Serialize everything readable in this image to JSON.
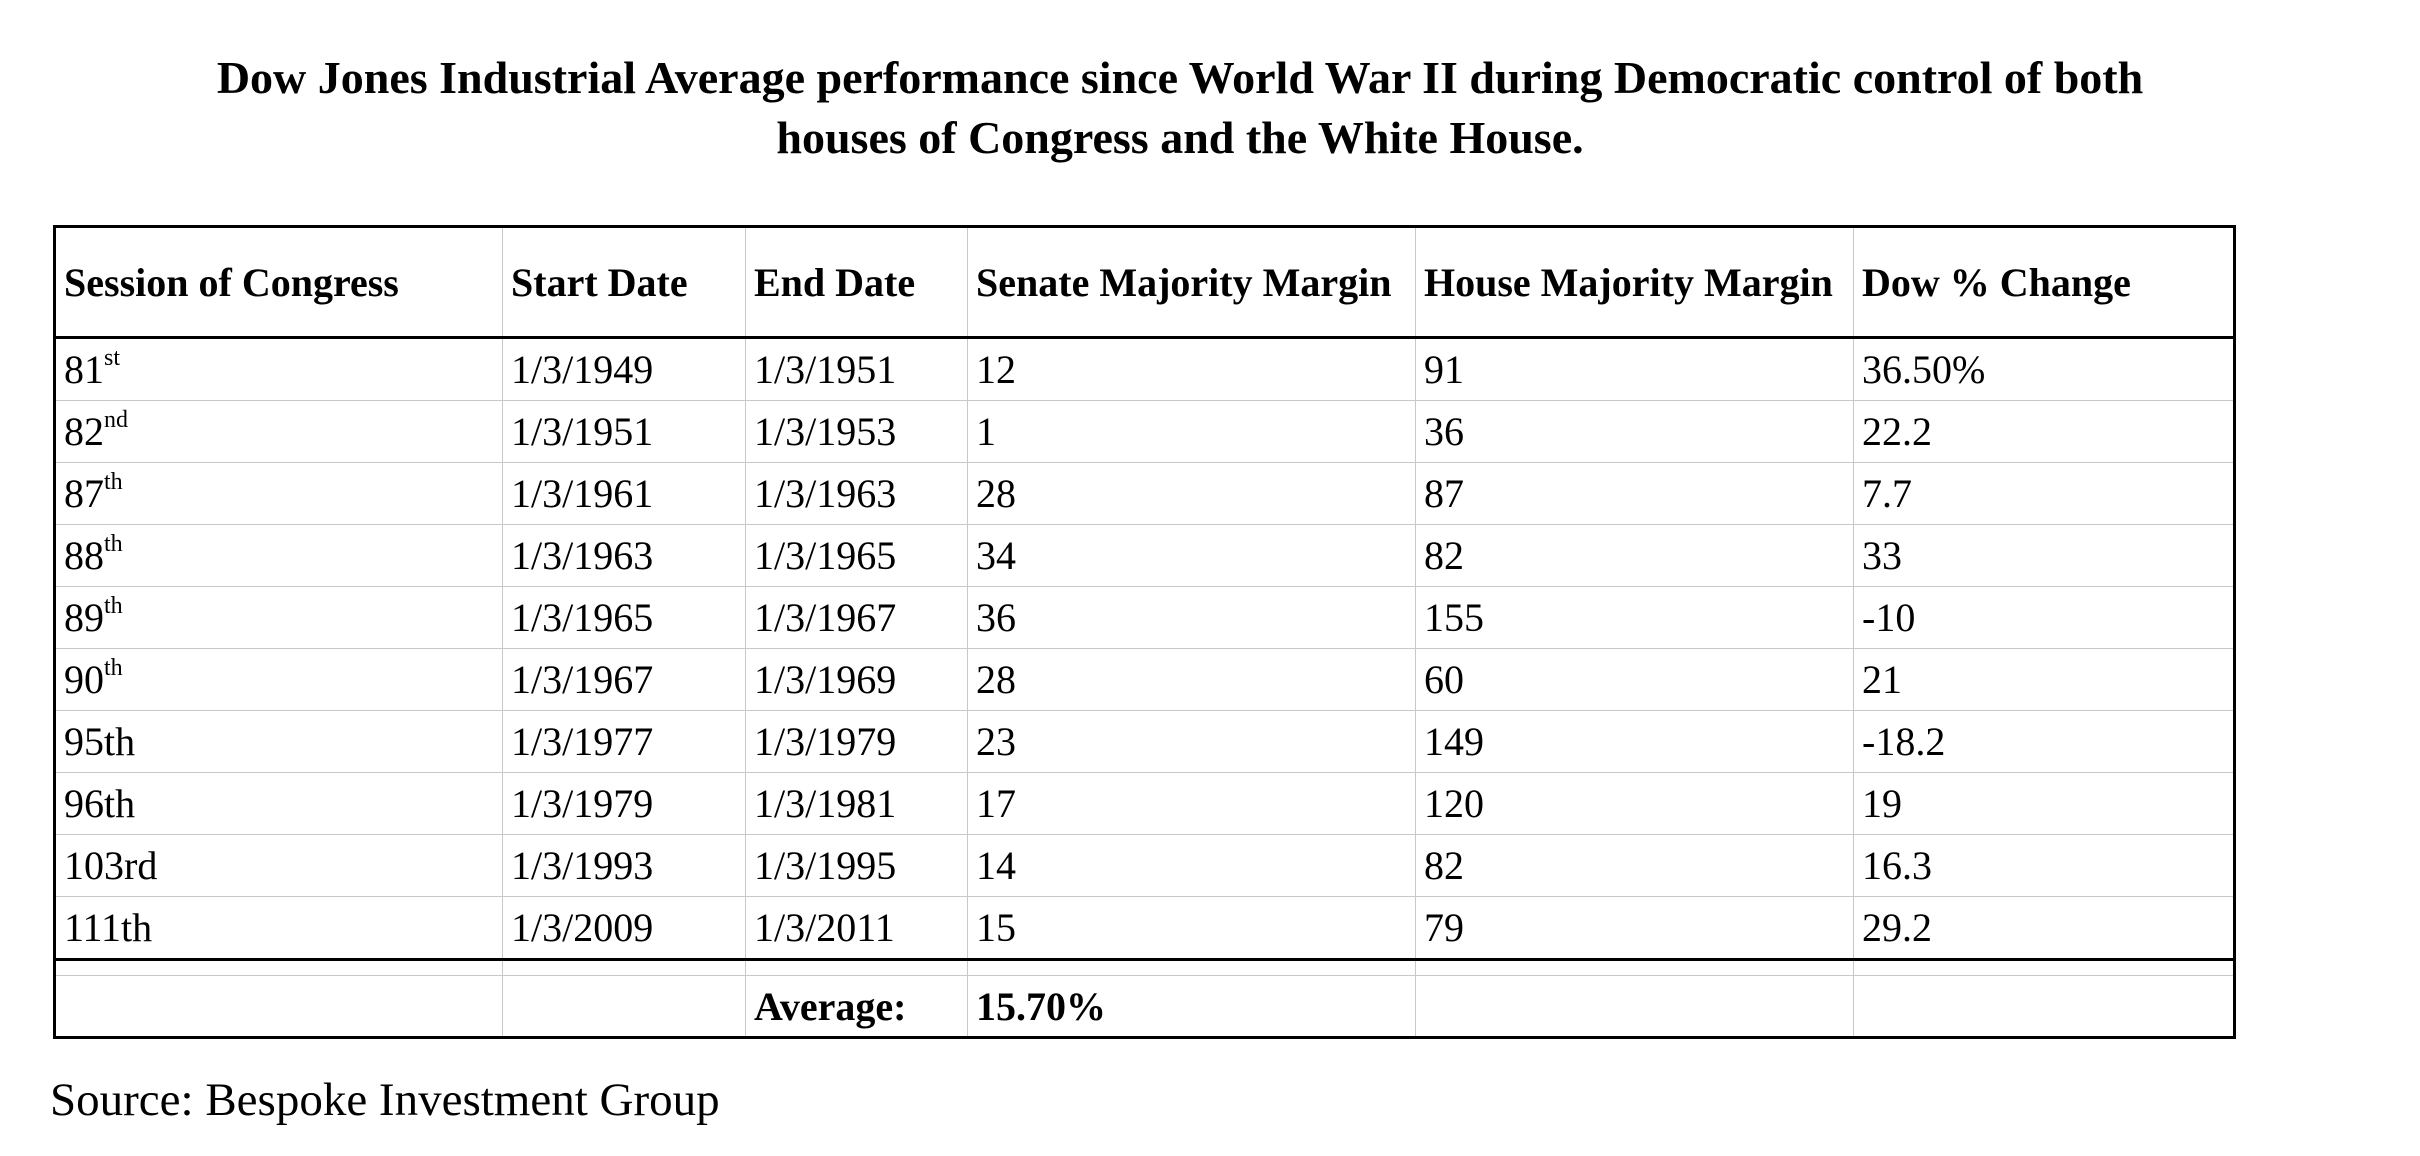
{
  "title": {
    "line1": "Dow Jones Industrial Average performance since World War II during Democratic control of both",
    "line2": "houses of Congress and the White House."
  },
  "table": {
    "headers": [
      "Session of Congress",
      "Start Date",
      "End Date",
      "Senate Majority Margin",
      "House Majority Margin",
      "Dow % Change"
    ],
    "rows": [
      {
        "num": "81",
        "suffix": "st",
        "start": "1/3/1949",
        "end": "1/3/1951",
        "senate": "12",
        "house": "91",
        "dow": "36.50%"
      },
      {
        "num": "82",
        "suffix": "nd",
        "start": "1/3/1951",
        "end": "1/3/1953",
        "senate": "1",
        "house": "36",
        "dow": "22.2"
      },
      {
        "num": "87",
        "suffix": "th",
        "start": "1/3/1961",
        "end": "1/3/1963",
        "senate": "28",
        "house": "87",
        "dow": "7.7"
      },
      {
        "num": "88",
        "suffix": "th",
        "start": "1/3/1963",
        "end": "1/3/1965",
        "senate": "34",
        "house": "82",
        "dow": "33"
      },
      {
        "num": "89",
        "suffix": "th",
        "start": "1/3/1965",
        "end": "1/3/1967",
        "senate": "36",
        "house": "155",
        "dow": "-10"
      },
      {
        "num": "90",
        "suffix": "th",
        "start": "1/3/1967",
        "end": "1/3/1969",
        "senate": "28",
        "house": "60",
        "dow": "21"
      },
      {
        "num": "95th",
        "suffix": "",
        "start": "1/3/1977",
        "end": "1/3/1979",
        "senate": "23",
        "house": "149",
        "dow": "-18.2"
      },
      {
        "num": "96th",
        "suffix": "",
        "start": "1/3/1979",
        "end": "1/3/1981",
        "senate": "17",
        "house": "120",
        "dow": "19"
      },
      {
        "num": "103rd",
        "suffix": "",
        "start": "1/3/1993",
        "end": "1/3/1995",
        "senate": "14",
        "house": "82",
        "dow": "16.3"
      },
      {
        "num": "111th",
        "suffix": "",
        "start": "1/3/2009",
        "end": "1/3/2011",
        "senate": "15",
        "house": "79",
        "dow": "29.2"
      }
    ],
    "average_label": "Average:",
    "average_value": "15.70%"
  },
  "source": "Source: Bespoke Investment Group"
}
